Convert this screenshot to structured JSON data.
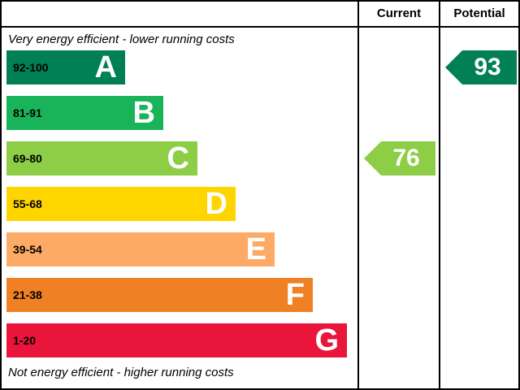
{
  "header": {
    "current_label": "Current",
    "potential_label": "Potential"
  },
  "captions": {
    "top": "Very energy efficient - lower running costs",
    "bottom": "Not energy efficient - higher running costs"
  },
  "chart_data": {
    "type": "bar",
    "orientation": "horizontal",
    "description": "Energy efficiency rating bands A-G with current and potential ratings",
    "bands": [
      {
        "letter": "A",
        "range": "92-100",
        "color": "#008054",
        "width_pct": 34
      },
      {
        "letter": "B",
        "range": "81-91",
        "color": "#19b459",
        "width_pct": 45
      },
      {
        "letter": "C",
        "range": "69-80",
        "color": "#8dce46",
        "width_pct": 55
      },
      {
        "letter": "D",
        "range": "55-68",
        "color": "#ffd500",
        "width_pct": 66
      },
      {
        "letter": "E",
        "range": "39-54",
        "color": "#fcaa65",
        "width_pct": 77
      },
      {
        "letter": "F",
        "range": "21-38",
        "color": "#ef8023",
        "width_pct": 88
      },
      {
        "letter": "G",
        "range": "1-20",
        "color": "#e9153b",
        "width_pct": 98
      }
    ],
    "current": {
      "value": "76",
      "band": "C",
      "color": "#8dce46"
    },
    "potential": {
      "value": "93",
      "band": "A",
      "color": "#008054"
    }
  }
}
